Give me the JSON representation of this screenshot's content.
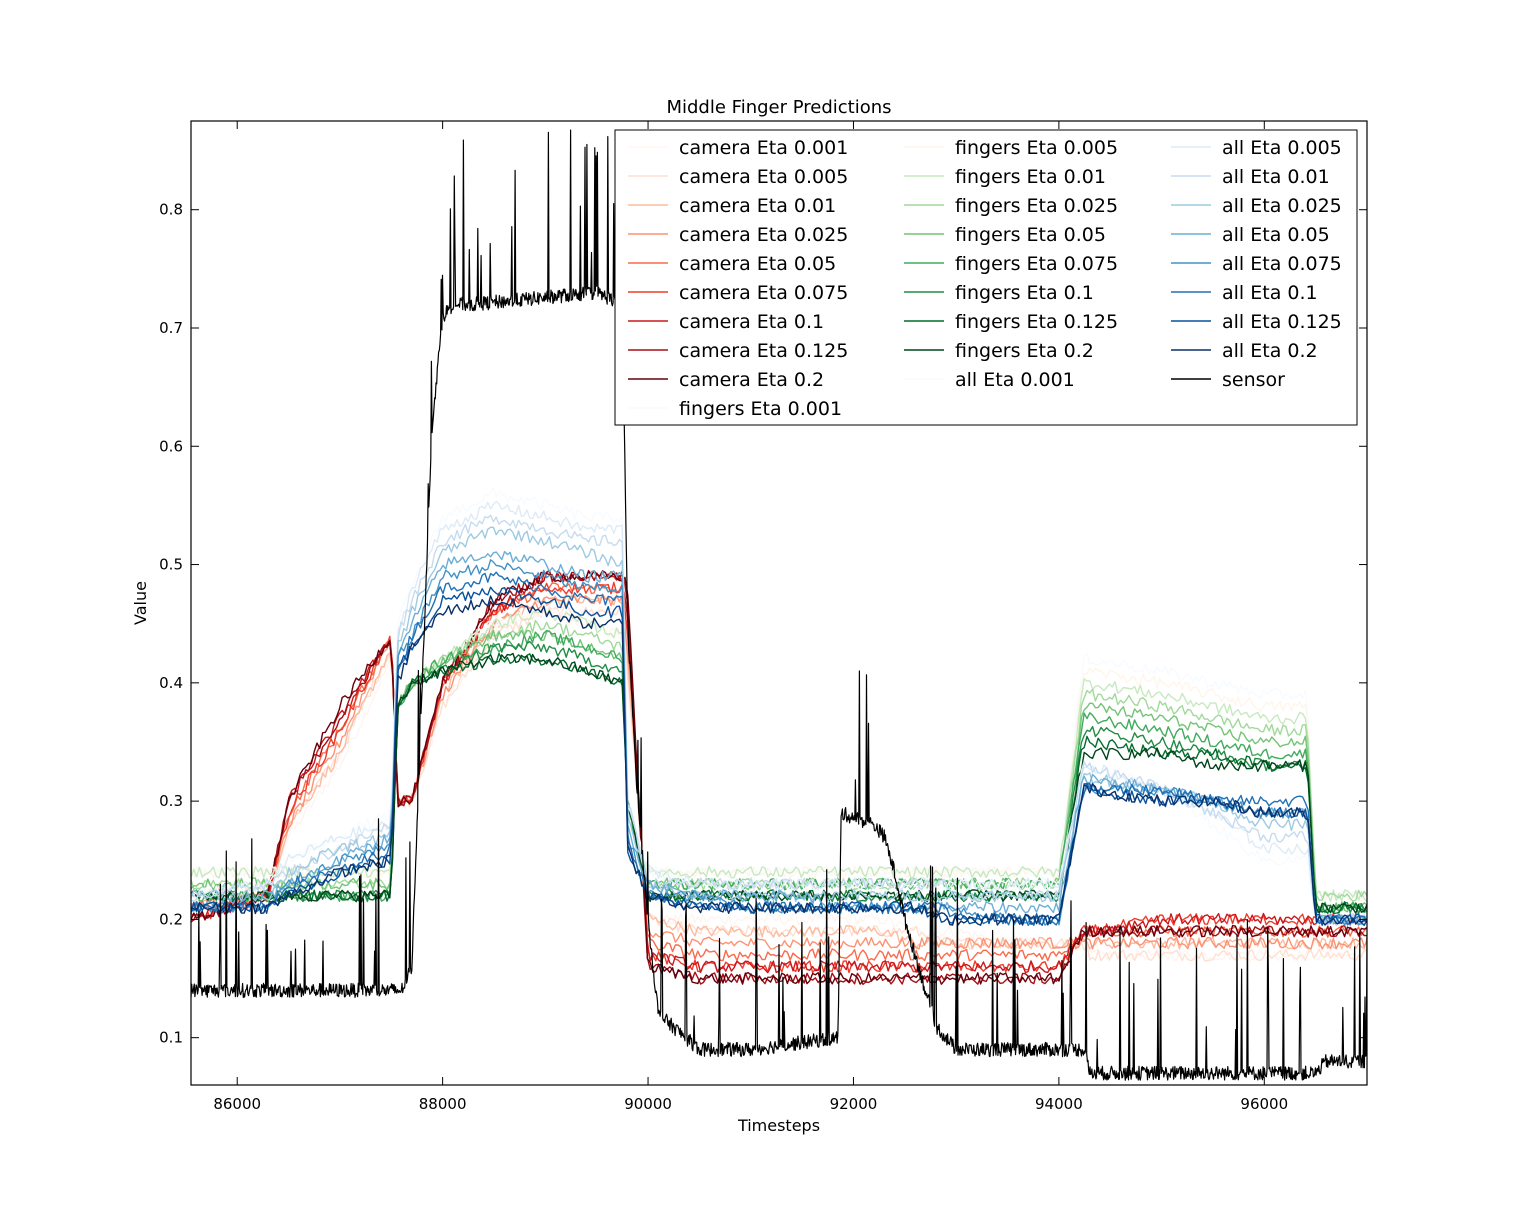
{
  "chart_data": {
    "type": "line",
    "title": "Middle Finger Predictions",
    "xlabel": "Timesteps",
    "ylabel": "Value",
    "xlim": [
      85550,
      97000
    ],
    "ylim": [
      0.06,
      0.875
    ],
    "x_ticks": [
      86000,
      88000,
      90000,
      92000,
      94000,
      96000
    ],
    "y_ticks": [
      0.1,
      0.2,
      0.3,
      0.4,
      0.5,
      0.6,
      0.7,
      0.8
    ],
    "grid": false,
    "legend": {
      "placement": "upper-right",
      "columns": 3
    },
    "segments_x": [
      85550,
      86300,
      86500,
      87000,
      87500,
      87560,
      87700,
      88000,
      88500,
      89000,
      89400,
      89750,
      89800,
      90000,
      90500,
      91000,
      91500,
      91850,
      91900,
      92300,
      92600,
      92900,
      93000,
      93500,
      94000,
      94240,
      94300,
      95000,
      95500,
      96000,
      96420,
      96500,
      97000
    ],
    "series": [
      {
        "name": "camera Eta 0.001",
        "color": "#fff5f0",
        "values": [
          0.22,
          0.23,
          0.27,
          0.33,
          0.42,
          0.3,
          0.3,
          0.38,
          0.44,
          0.46,
          0.46,
          0.46,
          0.4,
          0.2,
          0.2,
          0.2,
          0.2,
          0.2,
          0.2,
          0.2,
          0.19,
          0.19,
          0.19,
          0.18,
          0.18,
          0.18,
          0.17,
          0.17,
          0.17,
          0.17,
          0.17,
          0.17,
          0.17
        ]
      },
      {
        "name": "camera Eta 0.005",
        "color": "#fee0d2",
        "values": [
          0.22,
          0.23,
          0.28,
          0.34,
          0.43,
          0.3,
          0.3,
          0.38,
          0.44,
          0.46,
          0.46,
          0.46,
          0.41,
          0.2,
          0.19,
          0.19,
          0.19,
          0.19,
          0.19,
          0.19,
          0.19,
          0.18,
          0.18,
          0.18,
          0.18,
          0.18,
          0.17,
          0.17,
          0.17,
          0.17,
          0.17,
          0.17,
          0.17
        ]
      },
      {
        "name": "camera Eta 0.01",
        "color": "#fcbba1",
        "values": [
          0.21,
          0.22,
          0.28,
          0.34,
          0.43,
          0.3,
          0.3,
          0.39,
          0.45,
          0.47,
          0.47,
          0.47,
          0.42,
          0.2,
          0.19,
          0.19,
          0.19,
          0.19,
          0.19,
          0.19,
          0.18,
          0.18,
          0.18,
          0.18,
          0.18,
          0.18,
          0.18,
          0.18,
          0.18,
          0.18,
          0.18,
          0.18,
          0.18
        ]
      },
      {
        "name": "camera Eta 0.025",
        "color": "#fc9272",
        "values": [
          0.21,
          0.22,
          0.28,
          0.35,
          0.44,
          0.3,
          0.3,
          0.39,
          0.45,
          0.47,
          0.47,
          0.47,
          0.43,
          0.19,
          0.18,
          0.18,
          0.18,
          0.18,
          0.18,
          0.18,
          0.18,
          0.18,
          0.18,
          0.18,
          0.18,
          0.18,
          0.18,
          0.18,
          0.18,
          0.18,
          0.18,
          0.18,
          0.18
        ]
      },
      {
        "name": "camera Eta 0.05",
        "color": "#fb6a4a",
        "values": [
          0.21,
          0.22,
          0.29,
          0.36,
          0.44,
          0.3,
          0.3,
          0.4,
          0.46,
          0.48,
          0.48,
          0.48,
          0.44,
          0.18,
          0.17,
          0.17,
          0.17,
          0.17,
          0.17,
          0.17,
          0.17,
          0.17,
          0.17,
          0.17,
          0.17,
          0.19,
          0.19,
          0.19,
          0.19,
          0.19,
          0.19,
          0.19,
          0.19
        ]
      },
      {
        "name": "camera Eta 0.075",
        "color": "#ef3b2c",
        "values": [
          0.2,
          0.22,
          0.29,
          0.36,
          0.44,
          0.3,
          0.3,
          0.4,
          0.46,
          0.48,
          0.48,
          0.48,
          0.45,
          0.17,
          0.16,
          0.16,
          0.16,
          0.16,
          0.16,
          0.16,
          0.16,
          0.16,
          0.16,
          0.16,
          0.16,
          0.19,
          0.19,
          0.2,
          0.2,
          0.2,
          0.2,
          0.2,
          0.2
        ]
      },
      {
        "name": "camera Eta 0.1",
        "color": "#cb181d",
        "values": [
          0.2,
          0.22,
          0.3,
          0.37,
          0.44,
          0.3,
          0.3,
          0.4,
          0.46,
          0.49,
          0.49,
          0.49,
          0.46,
          0.17,
          0.16,
          0.16,
          0.16,
          0.16,
          0.16,
          0.16,
          0.16,
          0.16,
          0.16,
          0.16,
          0.16,
          0.19,
          0.19,
          0.2,
          0.2,
          0.2,
          0.2,
          0.2,
          0.2
        ]
      },
      {
        "name": "camera Eta 0.125",
        "color": "#a50f15",
        "values": [
          0.2,
          0.22,
          0.3,
          0.37,
          0.44,
          0.3,
          0.3,
          0.4,
          0.47,
          0.49,
          0.49,
          0.49,
          0.47,
          0.16,
          0.15,
          0.15,
          0.15,
          0.15,
          0.15,
          0.15,
          0.15,
          0.15,
          0.15,
          0.15,
          0.15,
          0.19,
          0.19,
          0.19,
          0.19,
          0.19,
          0.19,
          0.19,
          0.19
        ]
      },
      {
        "name": "camera Eta 0.2",
        "color": "#67000d",
        "values": [
          0.2,
          0.22,
          0.3,
          0.38,
          0.44,
          0.3,
          0.3,
          0.4,
          0.47,
          0.49,
          0.49,
          0.49,
          0.48,
          0.16,
          0.15,
          0.15,
          0.15,
          0.15,
          0.15,
          0.15,
          0.15,
          0.15,
          0.15,
          0.15,
          0.15,
          0.19,
          0.19,
          0.19,
          0.19,
          0.19,
          0.19,
          0.19,
          0.19
        ]
      },
      {
        "name": "fingers Eta 0.001",
        "color": "#f7fbff",
        "values": [
          0.24,
          0.24,
          0.24,
          0.24,
          0.24,
          0.38,
          0.4,
          0.42,
          0.45,
          0.46,
          0.45,
          0.44,
          0.3,
          0.24,
          0.24,
          0.24,
          0.24,
          0.24,
          0.24,
          0.24,
          0.24,
          0.24,
          0.24,
          0.24,
          0.24,
          0.42,
          0.42,
          0.41,
          0.4,
          0.39,
          0.39,
          0.22,
          0.22
        ]
      },
      {
        "name": "fingers Eta 0.005",
        "color": "#fff5eb",
        "values": [
          0.24,
          0.24,
          0.24,
          0.24,
          0.24,
          0.38,
          0.4,
          0.42,
          0.45,
          0.46,
          0.45,
          0.44,
          0.3,
          0.24,
          0.24,
          0.24,
          0.24,
          0.24,
          0.24,
          0.24,
          0.24,
          0.24,
          0.24,
          0.24,
          0.24,
          0.41,
          0.41,
          0.4,
          0.39,
          0.38,
          0.38,
          0.22,
          0.22
        ]
      },
      {
        "name": "fingers Eta 0.01",
        "color": "#c7e9c0",
        "values": [
          0.24,
          0.24,
          0.24,
          0.24,
          0.24,
          0.38,
          0.4,
          0.42,
          0.45,
          0.46,
          0.45,
          0.44,
          0.3,
          0.24,
          0.24,
          0.24,
          0.24,
          0.24,
          0.24,
          0.24,
          0.24,
          0.24,
          0.24,
          0.24,
          0.24,
          0.4,
          0.4,
          0.39,
          0.38,
          0.37,
          0.37,
          0.22,
          0.22
        ]
      },
      {
        "name": "fingers Eta 0.025",
        "color": "#a1d99b",
        "values": [
          0.23,
          0.23,
          0.23,
          0.23,
          0.23,
          0.38,
          0.4,
          0.42,
          0.44,
          0.45,
          0.44,
          0.43,
          0.3,
          0.23,
          0.23,
          0.23,
          0.23,
          0.23,
          0.23,
          0.23,
          0.23,
          0.23,
          0.23,
          0.23,
          0.23,
          0.39,
          0.39,
          0.38,
          0.37,
          0.36,
          0.36,
          0.22,
          0.22
        ]
      },
      {
        "name": "fingers Eta 0.05",
        "color": "#74c476",
        "values": [
          0.23,
          0.23,
          0.23,
          0.23,
          0.23,
          0.38,
          0.4,
          0.42,
          0.44,
          0.44,
          0.43,
          0.42,
          0.3,
          0.23,
          0.23,
          0.23,
          0.23,
          0.23,
          0.23,
          0.23,
          0.23,
          0.23,
          0.23,
          0.23,
          0.23,
          0.38,
          0.38,
          0.37,
          0.36,
          0.35,
          0.35,
          0.21,
          0.21
        ]
      },
      {
        "name": "fingers Eta 0.075",
        "color": "#41ab5d",
        "values": [
          0.22,
          0.22,
          0.22,
          0.22,
          0.22,
          0.38,
          0.4,
          0.42,
          0.43,
          0.44,
          0.43,
          0.42,
          0.3,
          0.23,
          0.23,
          0.23,
          0.23,
          0.23,
          0.23,
          0.23,
          0.23,
          0.23,
          0.23,
          0.23,
          0.23,
          0.37,
          0.37,
          0.36,
          0.35,
          0.34,
          0.34,
          0.21,
          0.21
        ]
      },
      {
        "name": "fingers Eta 0.1",
        "color": "#238b45",
        "values": [
          0.22,
          0.22,
          0.22,
          0.22,
          0.22,
          0.38,
          0.4,
          0.41,
          0.43,
          0.43,
          0.42,
          0.41,
          0.3,
          0.22,
          0.22,
          0.22,
          0.22,
          0.22,
          0.22,
          0.22,
          0.22,
          0.22,
          0.22,
          0.22,
          0.22,
          0.36,
          0.36,
          0.35,
          0.34,
          0.33,
          0.33,
          0.21,
          0.21
        ]
      },
      {
        "name": "fingers Eta 0.125",
        "color": "#006d2c",
        "values": [
          0.22,
          0.22,
          0.22,
          0.22,
          0.22,
          0.38,
          0.4,
          0.41,
          0.42,
          0.42,
          0.41,
          0.4,
          0.3,
          0.22,
          0.22,
          0.22,
          0.22,
          0.22,
          0.22,
          0.22,
          0.22,
          0.22,
          0.22,
          0.22,
          0.22,
          0.35,
          0.35,
          0.34,
          0.34,
          0.33,
          0.33,
          0.21,
          0.21
        ]
      },
      {
        "name": "fingers Eta 0.2",
        "color": "#00441b",
        "values": [
          0.22,
          0.22,
          0.22,
          0.22,
          0.22,
          0.38,
          0.4,
          0.41,
          0.42,
          0.42,
          0.41,
          0.4,
          0.3,
          0.22,
          0.22,
          0.22,
          0.22,
          0.22,
          0.22,
          0.22,
          0.22,
          0.22,
          0.22,
          0.22,
          0.22,
          0.34,
          0.34,
          0.34,
          0.33,
          0.33,
          0.33,
          0.21,
          0.21
        ]
      },
      {
        "name": "all Eta 0.001",
        "color": "#f7fbff",
        "values": [
          0.22,
          0.23,
          0.25,
          0.27,
          0.29,
          0.45,
          0.48,
          0.54,
          0.56,
          0.55,
          0.54,
          0.54,
          0.3,
          0.24,
          0.23,
          0.23,
          0.23,
          0.23,
          0.23,
          0.23,
          0.23,
          0.23,
          0.23,
          0.23,
          0.23,
          0.33,
          0.33,
          0.31,
          0.28,
          0.25,
          0.25,
          0.2,
          0.2
        ]
      },
      {
        "name": "all Eta 0.005",
        "color": "#deebf7",
        "values": [
          0.22,
          0.23,
          0.25,
          0.27,
          0.28,
          0.44,
          0.48,
          0.53,
          0.55,
          0.54,
          0.53,
          0.53,
          0.3,
          0.24,
          0.23,
          0.23,
          0.23,
          0.23,
          0.23,
          0.23,
          0.23,
          0.23,
          0.23,
          0.23,
          0.23,
          0.33,
          0.33,
          0.31,
          0.29,
          0.26,
          0.26,
          0.2,
          0.2
        ]
      },
      {
        "name": "all Eta 0.01",
        "color": "#c6dbef",
        "values": [
          0.22,
          0.23,
          0.24,
          0.26,
          0.28,
          0.44,
          0.47,
          0.52,
          0.54,
          0.53,
          0.52,
          0.52,
          0.3,
          0.23,
          0.23,
          0.23,
          0.23,
          0.23,
          0.23,
          0.23,
          0.23,
          0.23,
          0.22,
          0.22,
          0.22,
          0.33,
          0.33,
          0.31,
          0.29,
          0.27,
          0.27,
          0.2,
          0.2
        ]
      },
      {
        "name": "all Eta 0.025",
        "color": "#9ecae1",
        "values": [
          0.22,
          0.22,
          0.24,
          0.26,
          0.27,
          0.43,
          0.46,
          0.51,
          0.53,
          0.52,
          0.51,
          0.5,
          0.29,
          0.23,
          0.22,
          0.22,
          0.22,
          0.22,
          0.22,
          0.22,
          0.22,
          0.22,
          0.22,
          0.22,
          0.22,
          0.32,
          0.32,
          0.31,
          0.3,
          0.28,
          0.28,
          0.2,
          0.2
        ]
      },
      {
        "name": "all Eta 0.05",
        "color": "#6baed6",
        "values": [
          0.21,
          0.22,
          0.23,
          0.25,
          0.27,
          0.42,
          0.45,
          0.5,
          0.51,
          0.5,
          0.49,
          0.49,
          0.28,
          0.23,
          0.22,
          0.22,
          0.22,
          0.21,
          0.21,
          0.21,
          0.21,
          0.21,
          0.21,
          0.21,
          0.21,
          0.32,
          0.32,
          0.31,
          0.3,
          0.29,
          0.29,
          0.2,
          0.2
        ]
      },
      {
        "name": "all Eta 0.075",
        "color": "#4292c6",
        "values": [
          0.21,
          0.21,
          0.23,
          0.25,
          0.26,
          0.42,
          0.44,
          0.49,
          0.5,
          0.49,
          0.48,
          0.48,
          0.27,
          0.22,
          0.22,
          0.21,
          0.21,
          0.21,
          0.21,
          0.21,
          0.21,
          0.21,
          0.21,
          0.2,
          0.2,
          0.31,
          0.31,
          0.31,
          0.3,
          0.29,
          0.29,
          0.2,
          0.2
        ]
      },
      {
        "name": "all Eta 0.1",
        "color": "#2171b5",
        "values": [
          0.21,
          0.21,
          0.23,
          0.24,
          0.26,
          0.41,
          0.44,
          0.48,
          0.49,
          0.48,
          0.47,
          0.47,
          0.27,
          0.22,
          0.21,
          0.21,
          0.21,
          0.21,
          0.21,
          0.21,
          0.21,
          0.21,
          0.2,
          0.2,
          0.2,
          0.31,
          0.31,
          0.31,
          0.3,
          0.3,
          0.3,
          0.2,
          0.2
        ]
      },
      {
        "name": "all Eta 0.125",
        "color": "#08519c",
        "values": [
          0.21,
          0.21,
          0.22,
          0.24,
          0.25,
          0.41,
          0.43,
          0.47,
          0.48,
          0.47,
          0.46,
          0.46,
          0.26,
          0.22,
          0.21,
          0.21,
          0.21,
          0.21,
          0.21,
          0.21,
          0.21,
          0.2,
          0.2,
          0.2,
          0.2,
          0.31,
          0.31,
          0.3,
          0.3,
          0.29,
          0.29,
          0.2,
          0.2
        ]
      },
      {
        "name": "all Eta 0.2",
        "color": "#08306b",
        "values": [
          0.21,
          0.21,
          0.22,
          0.24,
          0.25,
          0.4,
          0.43,
          0.46,
          0.47,
          0.46,
          0.45,
          0.45,
          0.26,
          0.22,
          0.21,
          0.21,
          0.21,
          0.21,
          0.21,
          0.21,
          0.21,
          0.2,
          0.2,
          0.2,
          0.2,
          0.31,
          0.31,
          0.3,
          0.3,
          0.29,
          0.29,
          0.2,
          0.2
        ]
      },
      {
        "name": "sensor",
        "color": "#000000",
        "x": [
          85550,
          87600,
          87700,
          87800,
          87900,
          88000,
          88100,
          88300,
          89500,
          89750,
          89800,
          89900,
          90000,
          90100,
          90500,
          91000,
          91850,
          91880,
          92200,
          92300,
          92400,
          92500,
          92600,
          92700,
          92800,
          92900,
          93000,
          94000,
          94250,
          94300,
          95000,
          96000,
          96500,
          96600,
          97000
        ],
        "values": [
          0.14,
          0.14,
          0.16,
          0.4,
          0.62,
          0.71,
          0.72,
          0.72,
          0.73,
          0.72,
          0.45,
          0.3,
          0.2,
          0.12,
          0.09,
          0.09,
          0.1,
          0.29,
          0.28,
          0.27,
          0.24,
          0.2,
          0.17,
          0.14,
          0.11,
          0.1,
          0.09,
          0.09,
          0.09,
          0.07,
          0.07,
          0.07,
          0.07,
          0.08,
          0.08
        ]
      }
    ]
  }
}
